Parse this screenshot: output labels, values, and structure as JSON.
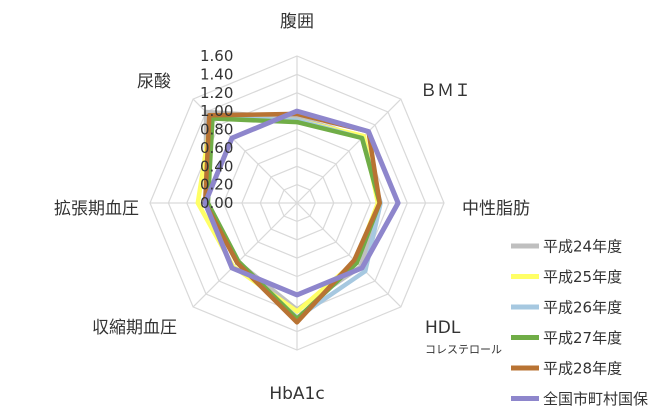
{
  "chart_data": {
    "type": "radar",
    "title": "",
    "axes": [
      {
        "label": "腹囲",
        "sublabel": ""
      },
      {
        "label": "ＢＭＩ",
        "sublabel": ""
      },
      {
        "label": "中性脂肪",
        "sublabel": ""
      },
      {
        "label": "HDL",
        "sublabel": "コレステロール"
      },
      {
        "label": "HbA1c",
        "sublabel": ""
      },
      {
        "label": "収縮期血圧",
        "sublabel": ""
      },
      {
        "label": "拡張期血圧",
        "sublabel": ""
      },
      {
        "label": "尿酸",
        "sublabel": ""
      }
    ],
    "r_ticks": [
      "0.00",
      "0.20",
      "0.40",
      "0.60",
      "0.80",
      "1.00",
      "1.20",
      "1.40",
      "1.60"
    ],
    "r_range": [
      0,
      1.6
    ],
    "grid": true,
    "legend_position": "right",
    "series": [
      {
        "name": "平成24年度",
        "color": "#bfbfbf",
        "values": [
          0.93,
          1.01,
          0.9,
          0.98,
          1.16,
          0.91,
          0.99,
          1.4
        ]
      },
      {
        "name": "平成25年度",
        "color": "#ffff66",
        "values": [
          0.9,
          1.03,
          0.88,
          0.9,
          1.18,
          0.98,
          1.08,
          1.32
        ]
      },
      {
        "name": "平成26年度",
        "color": "#a6c8e0",
        "values": [
          0.9,
          1.0,
          0.91,
          1.05,
          1.25,
          0.92,
          0.99,
          1.32
        ]
      },
      {
        "name": "平成27年度",
        "color": "#70ad47",
        "values": [
          0.88,
          1.0,
          0.9,
          0.92,
          1.26,
          0.9,
          0.97,
          1.3
        ]
      },
      {
        "name": "平成28年度",
        "color": "#b87333",
        "values": [
          0.97,
          1.1,
          0.9,
          0.88,
          1.3,
          0.92,
          1.0,
          1.35
        ]
      },
      {
        "name": "全国市町村国保",
        "color": "#8e86cc",
        "values": [
          1.0,
          1.1,
          1.1,
          1.0,
          1.0,
          1.0,
          1.0,
          1.0
        ]
      }
    ]
  }
}
